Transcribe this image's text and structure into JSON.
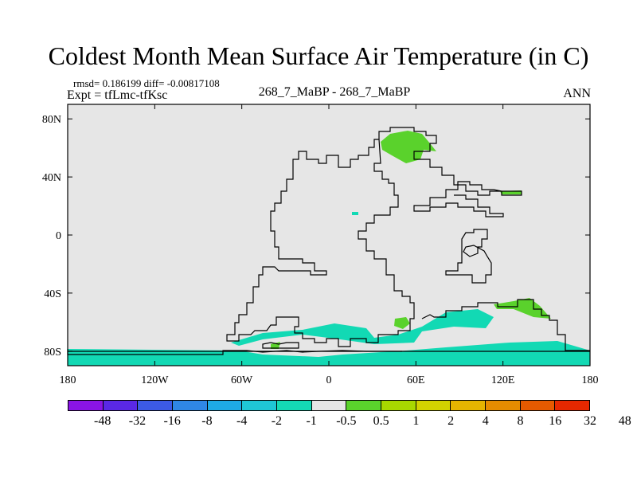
{
  "title": "Coldest Month Mean Surface Air Temperature (in C)",
  "stats": "rmsd= 0.186199 diff= -0.00817108",
  "experiment": "Expt = tfLmc-tfKsc",
  "center_label": "268_7_MaBP - 268_7_MaBP",
  "season": "ANN",
  "map": {
    "y_ticks": [
      {
        "label": "80N",
        "value": 80
      },
      {
        "label": "40N",
        "value": 40
      },
      {
        "label": "0",
        "value": 0
      },
      {
        "label": "40S",
        "value": -40
      },
      {
        "label": "80S",
        "value": -80
      }
    ],
    "x_ticks": [
      {
        "label": "180",
        "value": -180
      },
      {
        "label": "120W",
        "value": -120
      },
      {
        "label": "60W",
        "value": -60
      },
      {
        "label": "0",
        "value": 0
      },
      {
        "label": "60E",
        "value": 60
      },
      {
        "label": "120E",
        "value": 120
      },
      {
        "label": "180",
        "value": 180
      }
    ],
    "colors": {
      "background": "#e6e6e6",
      "green": "#5ad22c",
      "teal": "#12d9b4",
      "yellow_green": "#a8d800",
      "coastline": "#000000"
    }
  },
  "colorbar": {
    "colors": [
      "#8a14e6",
      "#5a28e6",
      "#3c5ae6",
      "#2f87e6",
      "#1eaae6",
      "#1fc6d6",
      "#14d9b4",
      "#e6e6e6",
      "#5ad22c",
      "#a8d800",
      "#d2d200",
      "#e6b400",
      "#e68c00",
      "#e65a00",
      "#e62800"
    ],
    "labels": [
      "-48",
      "-32",
      "-16",
      "-8",
      "-4",
      "-2",
      "-1",
      "-0.5",
      "0.5",
      "1",
      "2",
      "4",
      "8",
      "16",
      "32",
      "48"
    ]
  }
}
